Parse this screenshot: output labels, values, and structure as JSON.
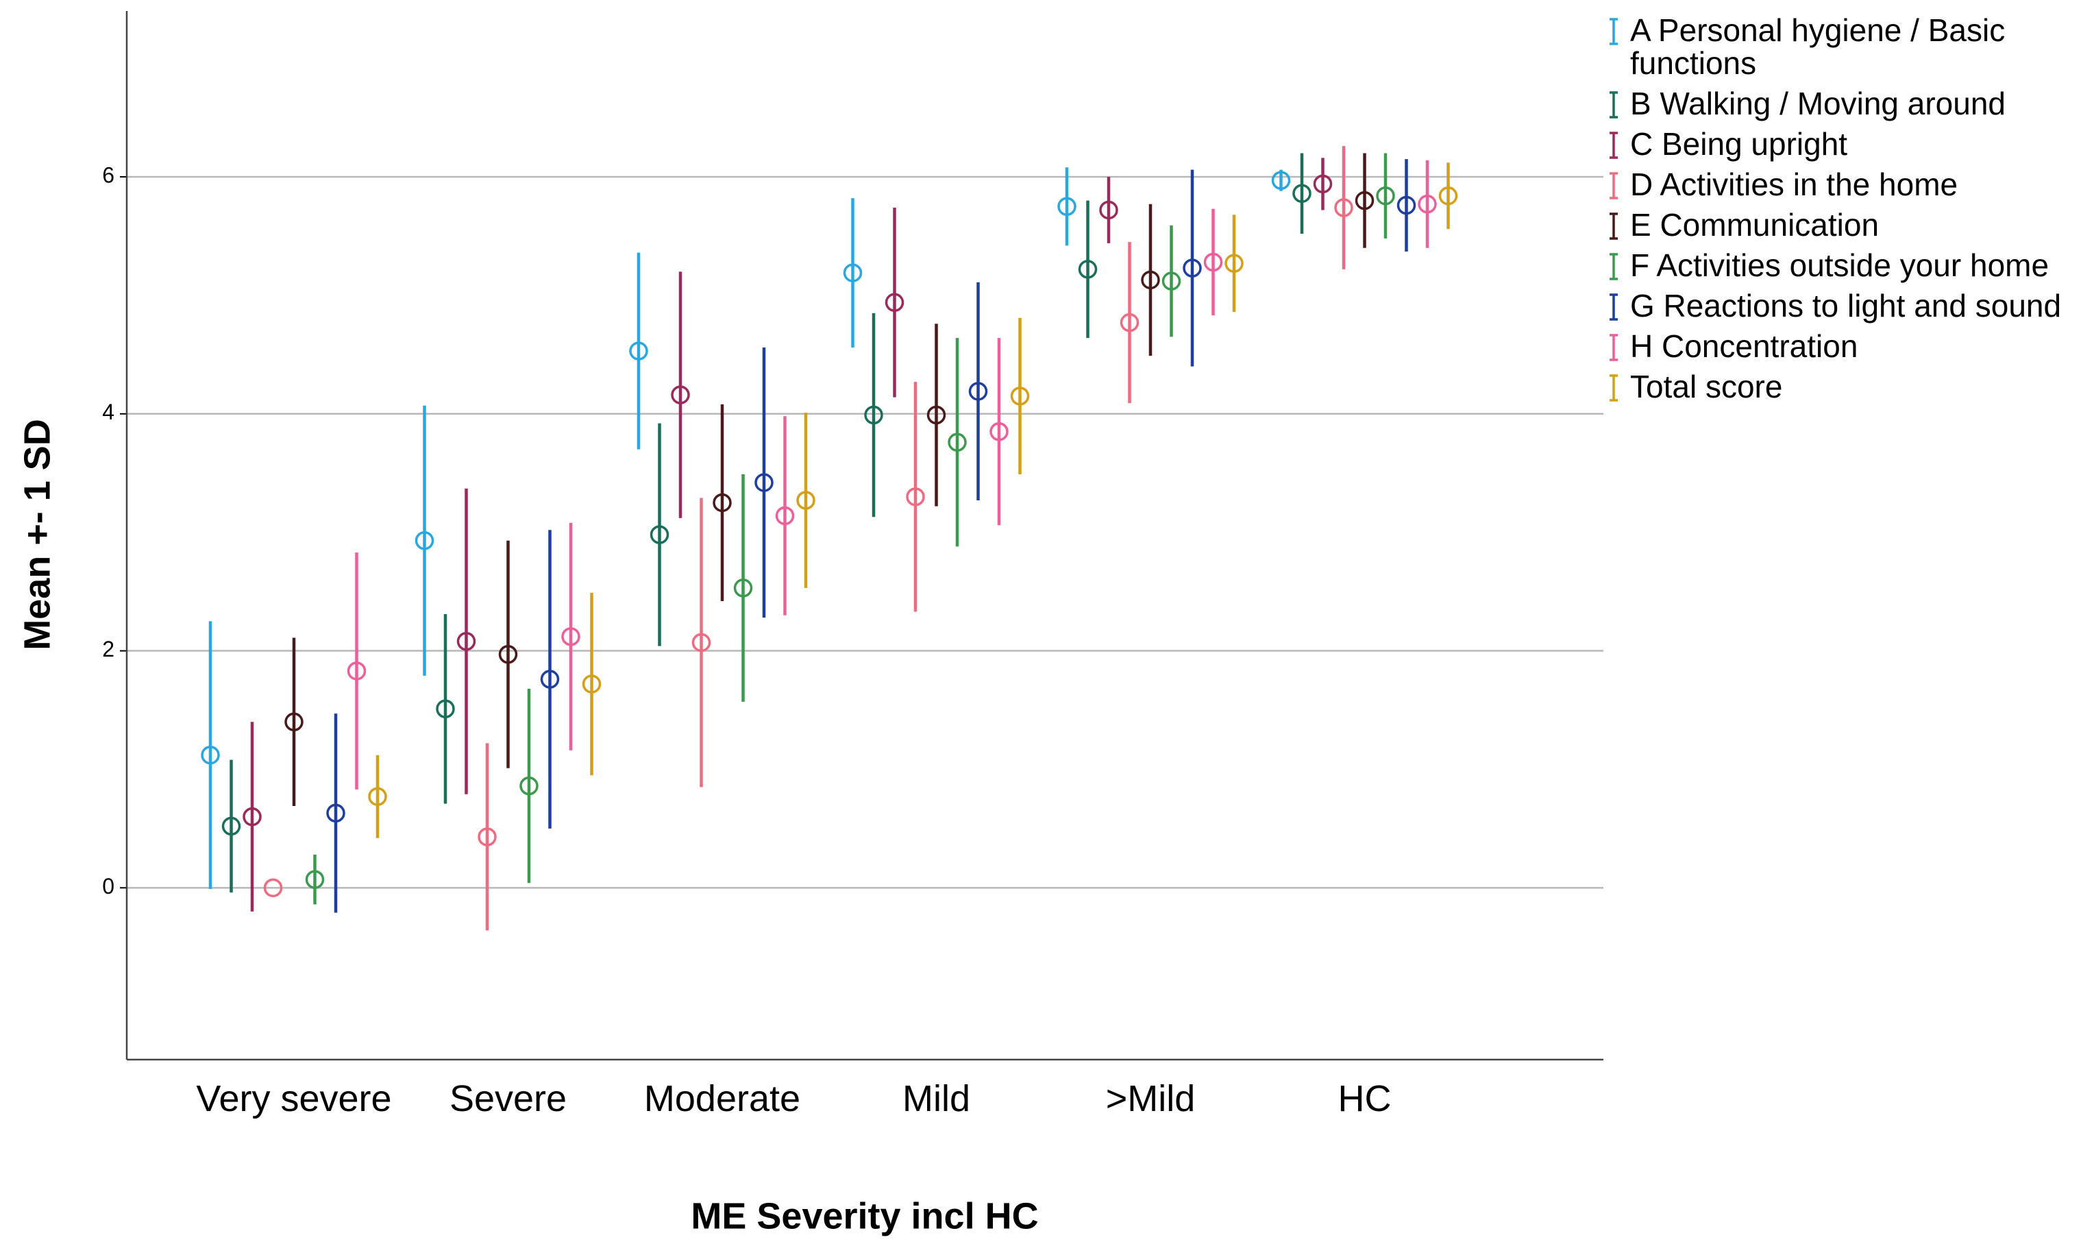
{
  "chart_data": {
    "type": "errorbar",
    "x_label": "ME Severity incl HC",
    "y_label": "Mean +- 1 SD",
    "categories": [
      "Very severe",
      "Severe",
      "Moderate",
      "Mild",
      ">Mild",
      "HC"
    ],
    "ylim": [
      -1.45,
      7.4
    ],
    "yticks": [
      0,
      2,
      4,
      6
    ],
    "grid": true,
    "legend": "right",
    "series": [
      {
        "name": "A Personal hygiene / Basic functions",
        "color": "#2aa7df",
        "values": [
          1.12,
          2.93,
          4.53,
          5.19,
          5.75,
          5.97
        ],
        "errors": [
          1.13,
          1.14,
          0.83,
          0.63,
          0.33,
          0.09
        ]
      },
      {
        "name": "B Walking / Moving around",
        "color": "#1a6e5a",
        "values": [
          0.52,
          1.51,
          2.98,
          3.99,
          5.22,
          5.86
        ],
        "errors": [
          0.56,
          0.8,
          0.94,
          0.86,
          0.58,
          0.34
        ]
      },
      {
        "name": "C Being upright",
        "color": "#9b2a5c",
        "values": [
          0.6,
          2.08,
          4.16,
          4.94,
          5.72,
          5.94
        ],
        "errors": [
          0.8,
          1.29,
          1.04,
          0.8,
          0.28,
          0.22
        ]
      },
      {
        "name": "D Activities in the home",
        "color": "#f06a80",
        "values": [
          0,
          0.43,
          2.07,
          3.3,
          4.77,
          5.74
        ],
        "errors": [
          0,
          0.79,
          1.22,
          0.97,
          0.68,
          0.52
        ]
      },
      {
        "name": "E Communication",
        "color": "#4a1a1a",
        "values": [
          1.4,
          1.97,
          3.25,
          3.99,
          5.13,
          5.8
        ],
        "errors": [
          0.71,
          0.96,
          0.83,
          0.77,
          0.64,
          0.4
        ]
      },
      {
        "name": "F Activities outside your home",
        "color": "#3c9a4e",
        "values": [
          0.07,
          0.86,
          2.53,
          3.76,
          5.12,
          5.84
        ],
        "errors": [
          0.21,
          0.82,
          0.96,
          0.88,
          0.47,
          0.36
        ]
      },
      {
        "name": "G Reactions to light and sound",
        "color": "#1e3f9e",
        "values": [
          0.63,
          1.76,
          3.42,
          4.19,
          5.23,
          5.76
        ],
        "errors": [
          0.84,
          1.26,
          1.14,
          0.92,
          0.83,
          0.39
        ]
      },
      {
        "name": "H Concentration",
        "color": "#ee5f99",
        "values": [
          1.83,
          2.12,
          3.14,
          3.85,
          5.28,
          5.77
        ],
        "errors": [
          1.0,
          0.96,
          0.84,
          0.79,
          0.45,
          0.37
        ]
      },
      {
        "name": "Total score",
        "color": "#d4a017",
        "values": [
          0.77,
          1.72,
          3.27,
          4.15,
          5.27,
          5.84
        ],
        "errors": [
          0.35,
          0.77,
          0.74,
          0.66,
          0.41,
          0.28
        ]
      }
    ]
  }
}
